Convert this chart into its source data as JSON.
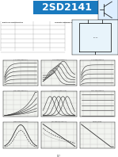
{
  "title": "2SD2141",
  "bg_color": "#c8dff0",
  "header_bg": "#1a7abf",
  "header_text_color": "#ffffff",
  "page_bg": "#ffffff",
  "figsize": [
    1.49,
    1.98
  ],
  "dpi": 100,
  "chart_titles": [
    "Ic-Vce Characteristics Curves",
    "Ic-hFE Characteristics Curves",
    "Ic-Vce Characteristics",
    "Vce-Ic Characteristics Curves",
    "Ic-hFE Saturation Characteristics Curves",
    "Vce-Ic Characteristics",
    "hFE-Characteristics Curves",
    "Safe Operating Area Curves",
    "Pd-Ta Derating"
  ],
  "curve_color": "#333333",
  "grid_color": "#bbbbbb"
}
